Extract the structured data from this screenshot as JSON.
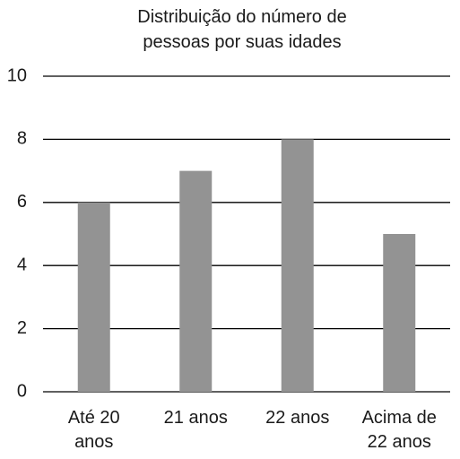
{
  "chart_data": {
    "type": "bar",
    "title": "Distribuição do número de pessoas por suas idades",
    "categories": [
      "Até 20 anos",
      "21 anos",
      "22 anos",
      "Acima de 22 anos"
    ],
    "values": [
      6,
      7,
      8,
      5
    ],
    "color": "#939393",
    "ylim": [
      0,
      10
    ],
    "yticks": [
      0,
      2,
      4,
      6,
      8,
      10
    ],
    "grid": true
  }
}
